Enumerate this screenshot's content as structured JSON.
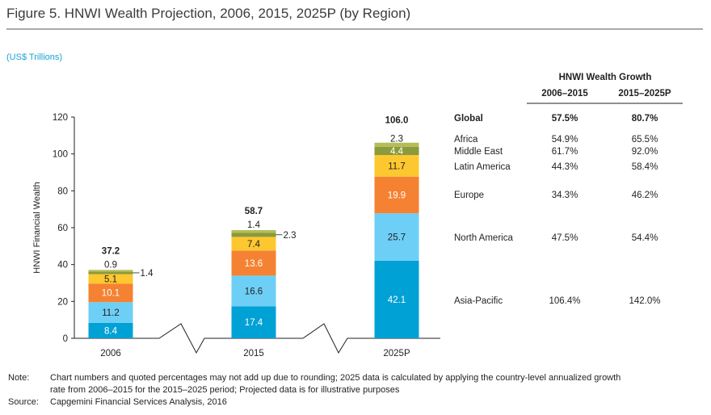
{
  "figure": {
    "title": "Figure 5. HNWI Wealth Projection, 2006, 2015, 2025P (by Region)",
    "unit_label": "(US$ Trillions)"
  },
  "chart_data": {
    "type": "bar",
    "stacked": true,
    "categories": [
      "2006",
      "2015",
      "2025P"
    ],
    "ylabel": "HNWI Financial Wealth",
    "ylim": [
      0,
      120
    ],
    "yticks": [
      0,
      20,
      40,
      60,
      80,
      100,
      120
    ],
    "totals": [
      "37.2",
      "58.7",
      "106.0"
    ],
    "series": [
      {
        "name": "Asia-Pacific",
        "color": "#00a1d5",
        "label_color": "#ffffff",
        "values": [
          8.4,
          17.4,
          42.1
        ]
      },
      {
        "name": "North America",
        "color": "#6dcff6",
        "label_color": "#231f20",
        "values": [
          11.2,
          16.6,
          25.7
        ]
      },
      {
        "name": "Europe",
        "color": "#f58232",
        "label_color": "#ffffff",
        "values": [
          10.1,
          13.6,
          19.9
        ]
      },
      {
        "name": "Latin America",
        "color": "#fdc82f",
        "label_color": "#231f20",
        "values": [
          5.1,
          7.4,
          11.7
        ]
      },
      {
        "name": "Middle East",
        "color": "#8b9a3b",
        "label_color": "#ffffff",
        "values": [
          1.4,
          2.3,
          4.4
        ]
      },
      {
        "name": "Africa",
        "color": "#b5bd5a",
        "label_color": "#231f20",
        "values": [
          0.9,
          1.4,
          2.3
        ]
      }
    ]
  },
  "growth_table": {
    "heading": "HNWI Wealth Growth",
    "columns": [
      "2006–2015",
      "2015–2025P"
    ],
    "rows": [
      {
        "region": "Global",
        "values": [
          "57.5%",
          "80.7%"
        ],
        "bold": true
      },
      {
        "region": "Africa",
        "values": [
          "54.9%",
          "65.5%"
        ]
      },
      {
        "region": "Middle East",
        "values": [
          "61.7%",
          "92.0%"
        ]
      },
      {
        "region": "Latin America",
        "values": [
          "44.3%",
          "58.4%"
        ]
      },
      {
        "region": "Europe",
        "values": [
          "34.3%",
          "46.2%"
        ]
      },
      {
        "region": "North America",
        "values": [
          "47.5%",
          "54.4%"
        ]
      },
      {
        "region": "Asia-Pacific",
        "values": [
          "106.4%",
          "142.0%"
        ]
      }
    ]
  },
  "footnotes": {
    "note_label": "Note:",
    "note_line1": "Chart numbers and quoted percentages may not add up due to rounding; 2025 data is calculated by applying the country-level annualized growth",
    "note_line2": "rate from 2006–2015 for the 2015–2025 period; Projected data is for illustrative purposes",
    "source_label": "Source:",
    "source_text": "Capgemini Financial Services Analysis, 2016"
  }
}
